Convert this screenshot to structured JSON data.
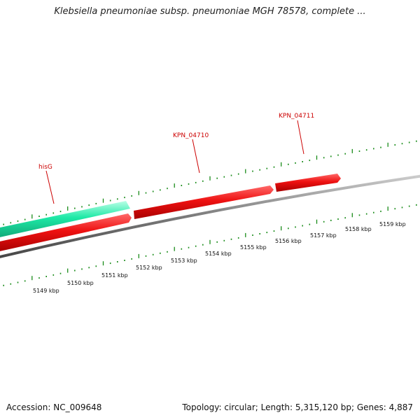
{
  "title": "Klebsiella pneumoniae subsp. pneumoniae MGH 78578, complete ...",
  "footer": {
    "accession": "Accession: NC_009648",
    "summary": "Topology: circular; Length: 5,315,120 bp; Genes: 4,887"
  },
  "colors": {
    "forward_gene": "#ee1111",
    "reverse_gene": "#1de9a6",
    "backbone": "#7a7a7a",
    "ticks": "#1a8c1a",
    "label": "#cc0000"
  },
  "scale": {
    "unit": "kbp",
    "labels": [
      "5149 kbp",
      "5150 kbp",
      "5151 kbp",
      "5152 kbp",
      "5153 kbp",
      "5154 kbp",
      "5155 kbp",
      "5156 kbp",
      "5157 kbp",
      "5158 kbp",
      "5159 kbp"
    ]
  },
  "genes": [
    {
      "name": "hisG",
      "strand": "reverse"
    },
    {
      "name": "KPN_04710",
      "strand": "forward"
    },
    {
      "name": "KPN_04711",
      "strand": "forward"
    }
  ]
}
